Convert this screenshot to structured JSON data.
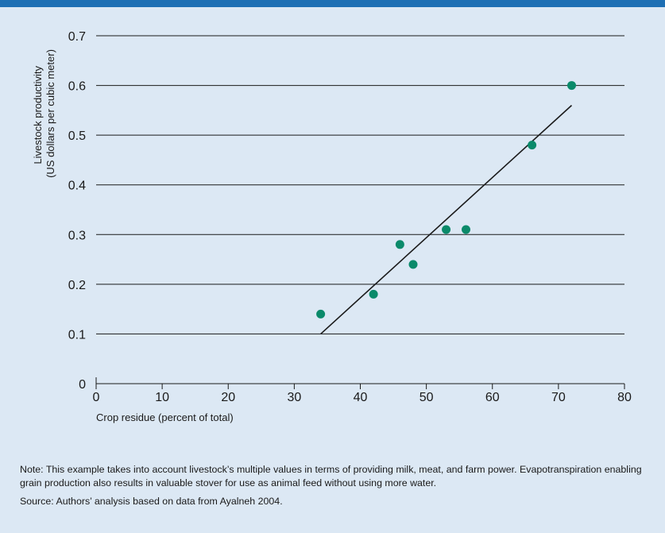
{
  "chart_data": {
    "type": "scatter",
    "xlabel": "Crop residue (percent of total)",
    "ylabel_lines": [
      "Livestock productivity",
      "(US dollars per cubic meter)"
    ],
    "xlim": [
      0,
      80
    ],
    "ylim": [
      0,
      0.7
    ],
    "xticks": [
      "0",
      "10",
      "20",
      "30",
      "40",
      "50",
      "60",
      "70",
      "80"
    ],
    "yticks": [
      "0",
      "0.1",
      "0.2",
      "0.3",
      "0.4",
      "0.5",
      "0.6",
      "0.7"
    ],
    "grid": "horizontal",
    "point_color": "#0a8a6a",
    "points": [
      {
        "x": 34,
        "y": 0.14
      },
      {
        "x": 42,
        "y": 0.18
      },
      {
        "x": 46,
        "y": 0.28
      },
      {
        "x": 48,
        "y": 0.24
      },
      {
        "x": 53,
        "y": 0.31
      },
      {
        "x": 56,
        "y": 0.31
      },
      {
        "x": 66,
        "y": 0.48
      },
      {
        "x": 72,
        "y": 0.6
      }
    ],
    "trendline": {
      "x1": 34,
      "y1": 0.1,
      "x2": 72,
      "y2": 0.56
    }
  },
  "notes": {
    "note": "Note: This example takes into account livestock’s multiple values in terms of providing milk, meat, and farm power. Evapotranspiration enabling grain production also results in valuable stover for use as animal feed without using more water.",
    "source": "Source: Authors’ analysis based on data from Ayalneh 2004."
  },
  "colors": {
    "background": "#dce8f4",
    "top_bar": "#1d6fb4",
    "gridline": "#1a1a1a"
  }
}
